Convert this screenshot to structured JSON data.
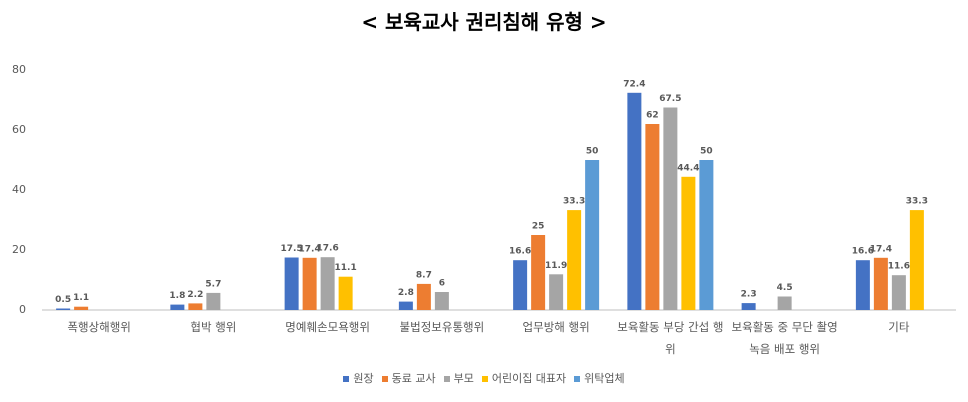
{
  "chart_data": {
    "type": "bar",
    "title": "< 보육교사 권리침해 유형 >",
    "categories": [
      "폭행상해행위",
      "협박 행위",
      "명예훼손모욕행위",
      "불법정보유통행위",
      "업무방해 행위",
      "보육활동 부당 간섭 행위",
      "보육활동 중 무단 촬영녹음 배포 행위",
      "기타"
    ],
    "series": [
      {
        "name": "원장",
        "color": "#4472c4",
        "values": [
          0.5,
          1.8,
          17.5,
          2.8,
          16.6,
          72.4,
          2.3,
          16.6
        ]
      },
      {
        "name": "동료 교사",
        "color": "#ed7d31",
        "values": [
          1.1,
          2.2,
          17.4,
          8.7,
          25,
          62,
          null,
          17.4
        ]
      },
      {
        "name": "부모",
        "color": "#a5a5a5",
        "values": [
          null,
          5.7,
          17.6,
          6,
          11.9,
          67.5,
          4.5,
          11.6
        ]
      },
      {
        "name": "어린이집 대표자",
        "color": "#ffc000",
        "values": [
          null,
          null,
          11.1,
          null,
          33.3,
          44.4,
          null,
          33.3
        ]
      },
      {
        "name": "위탁업체",
        "color": "#5b9bd5",
        "values": [
          null,
          null,
          null,
          null,
          50,
          50,
          null,
          null
        ]
      }
    ],
    "ylim": [
      0,
      80
    ],
    "yticks": [
      0,
      20,
      40,
      60,
      80
    ],
    "legend": "bottom"
  }
}
